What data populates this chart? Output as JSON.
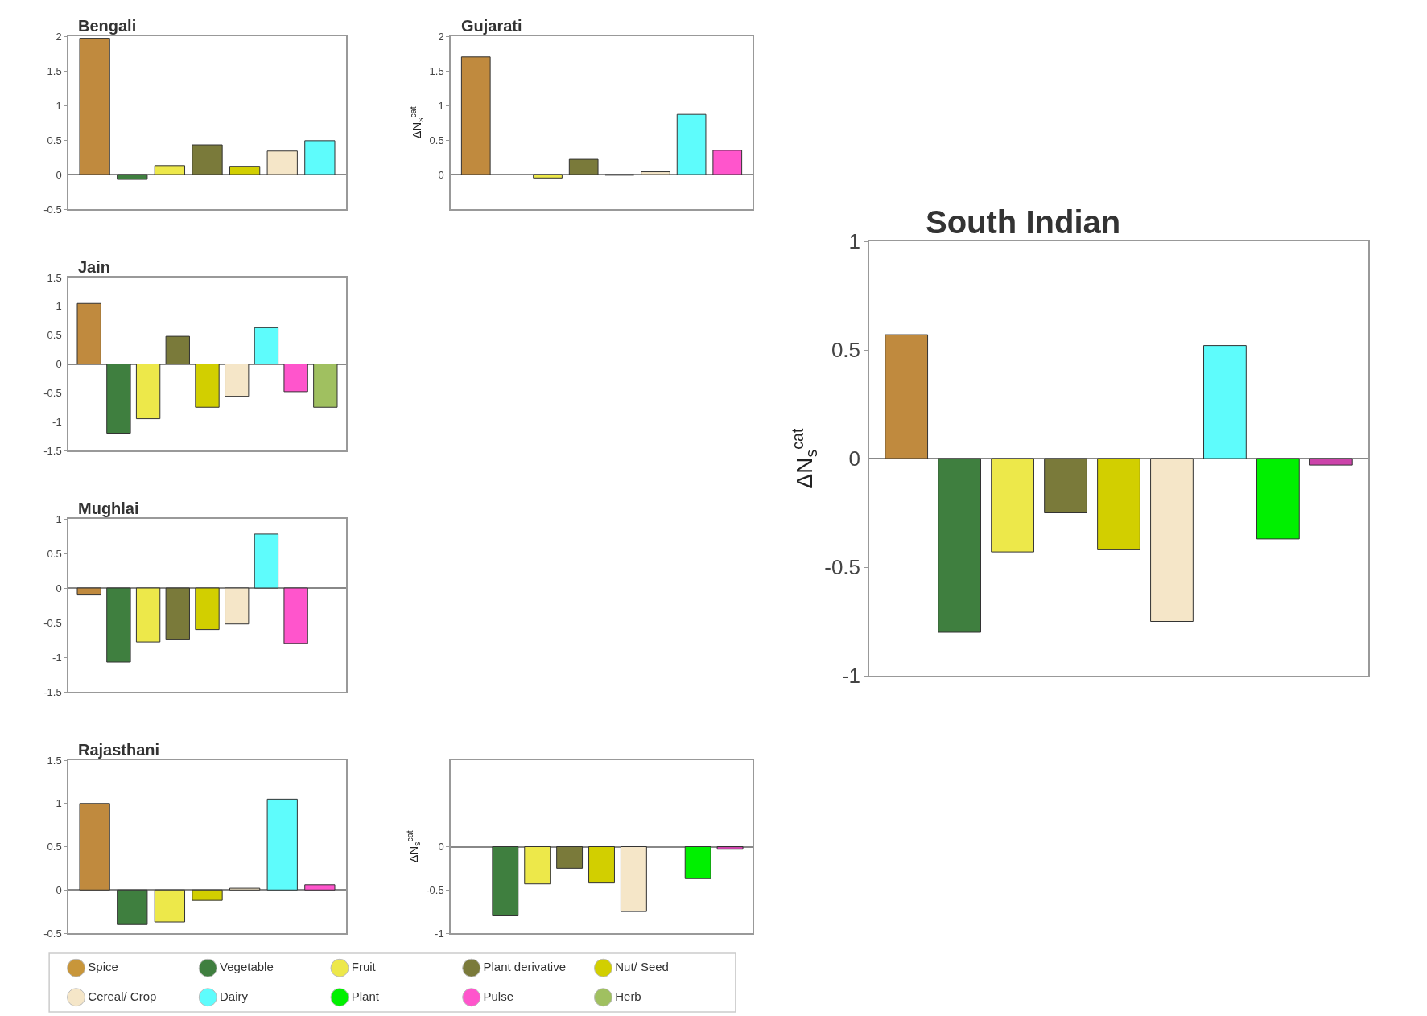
{
  "chart_data": [
    {
      "type": "bar",
      "title": "Bengali",
      "categories": [
        null,
        null,
        null,
        null,
        null,
        null,
        null
      ],
      "values": [
        1.97,
        -0.07,
        0.13,
        0.43,
        0.12,
        0.34,
        0.49
      ],
      "colors": [
        "#c08a3e",
        "#3f7f3f",
        "#ede84a",
        "#7a7a3a",
        "#d2cf00",
        "#f5e6c8",
        "#5efcfc"
      ],
      "ylim": [
        -0.5,
        2
      ],
      "yticks": [
        -0.5,
        0,
        0.5,
        1,
        1.5,
        2
      ],
      "tick_labels": "y"
    },
    {
      "type": "bar",
      "title": "Gujarati",
      "ylabel": "ΔN$_{s}$$^{cat}$",
      "categories": [
        null,
        null,
        null,
        null,
        null,
        null,
        null,
        null
      ],
      "values": [
        1.7,
        null,
        -0.05,
        0.22,
        -0.01,
        0.04,
        0.87,
        0.35
      ],
      "colors": [
        "#c08a3e",
        "#3f7f3f",
        "#ede84a",
        "#7a7a3a",
        "#d2cf00",
        "#f5e6c8",
        "#5efcfc",
        "#ff55cc"
      ],
      "ylim": [
        -0.5,
        2
      ],
      "yticks": [
        0,
        0.5,
        1,
        1.5,
        2
      ],
      "tick_labels": "y"
    },
    {
      "type": "bar",
      "title": "Jain",
      "categories": [
        null,
        null,
        null,
        null,
        null,
        null,
        null,
        null,
        null
      ],
      "values": [
        1.05,
        -1.2,
        -0.95,
        0.48,
        -0.75,
        -0.56,
        0.63,
        -0.48,
        -0.75
      ],
      "colors": [
        "#c08a3e",
        "#3f7f3f",
        "#ede84a",
        "#7a7a3a",
        "#d2cf00",
        "#f5e6c8",
        "#5efcfc",
        "#ff55cc",
        "#a0c060"
      ],
      "ylim": [
        -1.5,
        1.5
      ],
      "yticks": [
        -1.5,
        -1,
        -0.5,
        0,
        0.5,
        1,
        1.5
      ],
      "tick_labels": "y"
    },
    {
      "type": "bar",
      "title": "Mughlai",
      "categories": [
        null,
        null,
        null,
        null,
        null,
        null,
        null,
        null,
        null
      ],
      "values": [
        -0.1,
        -1.07,
        -0.78,
        -0.74,
        -0.6,
        -0.52,
        0.78,
        -0.8,
        null
      ],
      "colors": [
        "#c08a3e",
        "#3f7f3f",
        "#ede84a",
        "#7a7a3a",
        "#d2cf00",
        "#f5e6c8",
        "#5efcfc",
        "#ff55cc",
        "#ffffff"
      ],
      "ylim": [
        -1.5,
        1
      ],
      "yticks": [
        -1.5,
        -1,
        -0.5,
        0,
        0.5,
        1
      ],
      "tick_labels": "y"
    },
    {
      "type": "bar",
      "title": "Rajasthani",
      "categories": [
        null,
        null,
        null,
        null,
        null,
        null,
        null
      ],
      "values": [
        1.0,
        -0.4,
        -0.37,
        -0.12,
        0.02,
        1.05,
        0.06
      ],
      "colors": [
        "#c08a3e",
        "#3f7f3f",
        "#ede84a",
        "#d2cf00",
        "#f5e6c8",
        "#5efcfc",
        "#ff55cc"
      ],
      "ylim": [
        -0.5,
        1.5
      ],
      "yticks": [
        -0.5,
        0,
        0.5,
        1,
        1.5
      ],
      "tick_labels": "y"
    },
    {
      "type": "bar",
      "ylabel": "ΔN$_{s}$$^{cat}$",
      "categories": [
        null,
        null,
        null,
        null,
        null,
        null,
        null,
        null,
        null
      ],
      "values": [
        null,
        -0.8,
        -0.43,
        -0.25,
        -0.42,
        -0.75,
        null,
        -0.37,
        -0.03
      ],
      "colors": [
        "#c08a3e",
        "#3f7f3f",
        "#ede84a",
        "#7a7a3a",
        "#d2cf00",
        "#f5e6c8",
        "#5efcfc",
        "#00f000",
        "#cc44aa"
      ],
      "ylim": [
        -1,
        1
      ],
      "yticks": [
        -1,
        -0.5,
        0
      ],
      "tick_labels": "y"
    },
    {
      "type": "bar",
      "title": "South Indian",
      "ylabel": "ΔN$_{s}$$^{cat}$",
      "categories": [
        null,
        null,
        null,
        null,
        null,
        null,
        null,
        null,
        null
      ],
      "values": [
        0.57,
        -0.8,
        -0.43,
        -0.25,
        -0.42,
        -0.75,
        0.52,
        -0.37,
        -0.03
      ],
      "colors": [
        "#c08a3e",
        "#3f7f3f",
        "#ede84a",
        "#7a7a3a",
        "#d2cf00",
        "#f5e6c8",
        "#5efcfc",
        "#00f000",
        "#cc44aa"
      ],
      "ylim": [
        -1,
        1
      ],
      "yticks": [
        -1,
        -0.5,
        0,
        0.5,
        1
      ],
      "tick_labels": "y"
    },
    {
      "type": "other",
      "categories": [
        "Spice",
        "Vegetable",
        "Fruit",
        "Plant derivative",
        "Nut/ Seed",
        "Cereal/ Crop",
        "Dairy",
        "Plant",
        "Pulse",
        "Herb"
      ],
      "colors": [
        "#c8963a",
        "#3f7f3f",
        "#ede84a",
        "#7a7a3a",
        "#d2cf00",
        "#f5e6c8",
        "#5efcfc",
        "#00f000",
        "#ff55cc",
        "#a0c060"
      ]
    }
  ]
}
